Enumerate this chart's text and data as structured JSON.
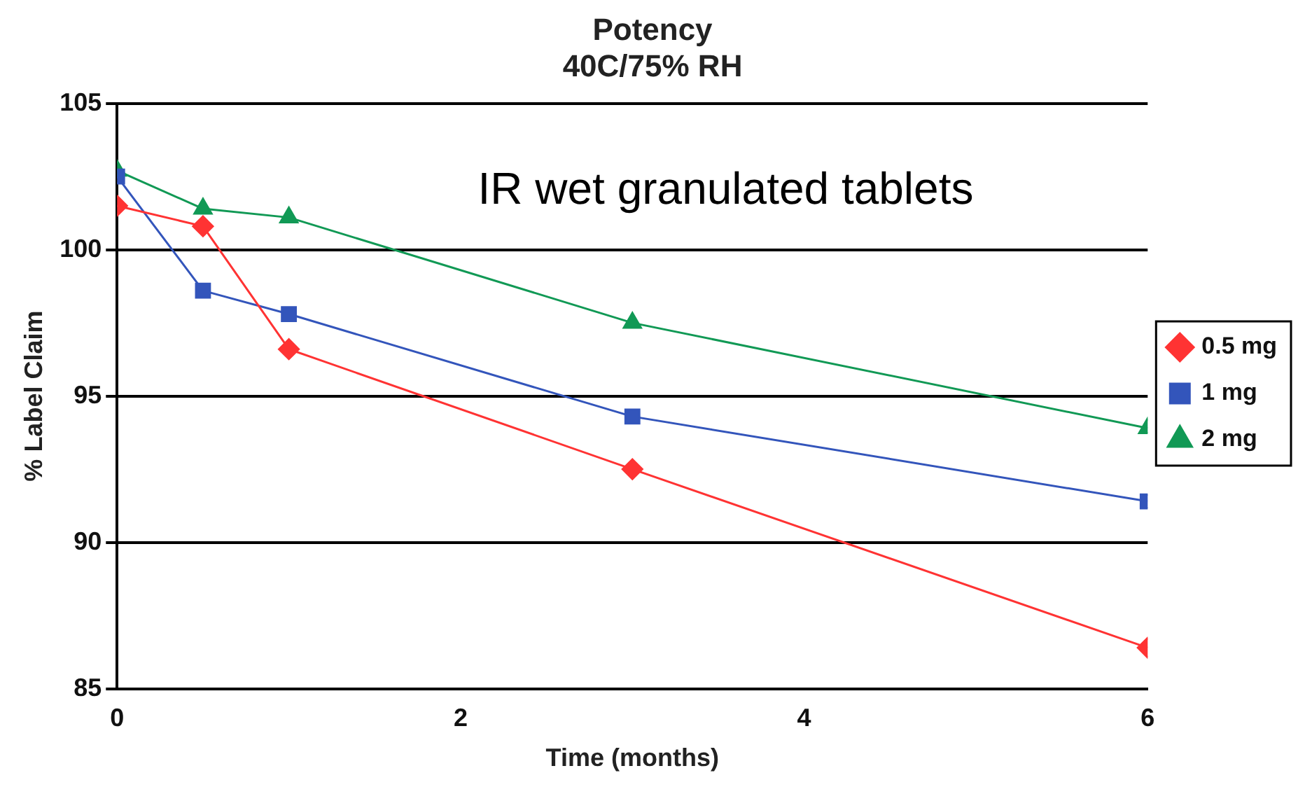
{
  "chart_data": {
    "type": "line",
    "title": "Potency",
    "subtitle": "40C/75% RH",
    "xlabel": "Time (months)",
    "ylabel": "% Label Claim",
    "annotations": [
      "IR wet granulated tablets"
    ],
    "x": [
      0,
      0.5,
      1,
      3,
      6
    ],
    "series": [
      {
        "name": "0.5 mg",
        "color": "#ff3333",
        "marker": "diamond",
        "values": [
          101.5,
          100.8,
          96.6,
          92.5,
          86.4
        ]
      },
      {
        "name": "1 mg",
        "color": "#3355bb",
        "marker": "square",
        "values": [
          102.5,
          98.6,
          97.8,
          94.3,
          91.4
        ]
      },
      {
        "name": "2 mg",
        "color": "#119955",
        "marker": "triangle",
        "values": [
          102.7,
          101.4,
          101.1,
          97.5,
          93.9
        ]
      }
    ],
    "xlim": [
      0,
      6
    ],
    "xticks": [
      0,
      2,
      4,
      6
    ],
    "ylim": [
      85,
      105
    ],
    "yticks": [
      85,
      90,
      95,
      100,
      105
    ],
    "grid": "y",
    "legend": "right",
    "line_style": "solid"
  }
}
